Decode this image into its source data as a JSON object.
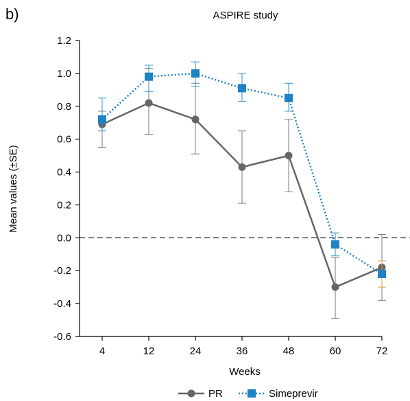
{
  "panel_label": "b)",
  "chart_data": {
    "type": "line",
    "title": "ASPIRE study",
    "xlabel": "Weeks",
    "ylabel": "Mean values (±SE)",
    "categories": [
      "4",
      "12",
      "24",
      "36",
      "48",
      "60",
      "72"
    ],
    "ylim": [
      -0.6,
      1.2
    ],
    "yticks": [
      -0.6,
      -0.4,
      -0.2,
      0.0,
      0.2,
      0.4,
      0.6,
      0.8,
      1.0,
      1.2
    ],
    "ytick_labels": [
      "-0.6",
      "-0.4",
      "-0.2",
      "0.0",
      "0.2",
      "0.4",
      "0.6",
      "0.8",
      "1.0",
      "1.2"
    ],
    "reference_line": {
      "y": 0.0,
      "style": "dashed"
    },
    "grid": false,
    "legend_position": "bottom",
    "series": [
      {
        "name": "PR",
        "color": "#666666",
        "marker": "circle",
        "line_style": "solid",
        "values": [
          0.69,
          0.82,
          0.72,
          0.43,
          0.5,
          -0.3,
          -0.18
        ],
        "error_low": [
          0.55,
          0.63,
          0.51,
          0.21,
          0.28,
          -0.49,
          -0.38
        ],
        "error_high": [
          0.77,
          1.03,
          0.94,
          0.65,
          0.72,
          -0.12,
          0.02
        ],
        "error_color": "#7a7a7a"
      },
      {
        "name": "Simeprevir",
        "color": "#1e82c4",
        "marker": "square",
        "line_style": "dotted",
        "values": [
          0.72,
          0.98,
          1.0,
          0.91,
          0.85,
          -0.04,
          -0.22
        ],
        "error_low": [
          0.65,
          0.89,
          0.92,
          0.83,
          0.77,
          -0.11,
          -0.3
        ],
        "error_high": [
          0.85,
          1.05,
          1.07,
          1.0,
          0.94,
          0.03,
          -0.14
        ],
        "error_color": "#2a8fd0",
        "error_color_overrides": {
          "6": "#e59a4a"
        }
      }
    ]
  }
}
